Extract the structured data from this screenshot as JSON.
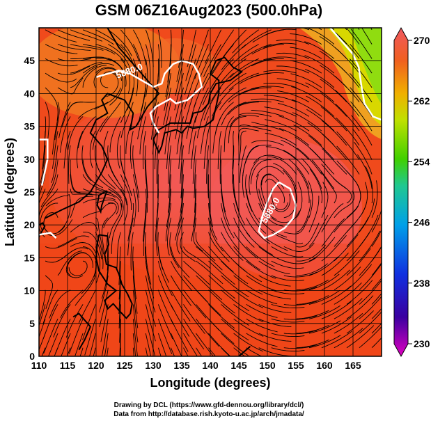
{
  "title": "GSM 06Z16Aug2023 (500.0hPa)",
  "chart_data": {
    "type": "heatmap",
    "x_axis": {
      "label": "Longitude (degrees)",
      "range": [
        110,
        170
      ],
      "ticks": [
        110,
        115,
        120,
        125,
        130,
        135,
        140,
        145,
        150,
        155,
        160,
        165
      ]
    },
    "y_axis": {
      "label": "Latitude  (degrees)",
      "range": [
        0,
        50
      ],
      "ticks": [
        0,
        5,
        10,
        15,
        20,
        25,
        30,
        35,
        40,
        45
      ]
    },
    "colorbar": {
      "range": [
        230,
        270
      ],
      "ticks": [
        230,
        238,
        246,
        254,
        262,
        270
      ],
      "colors": [
        "#e000c0",
        "#3a00a0",
        "#1030e0",
        "#00a0e8",
        "#20c890",
        "#40d000",
        "#c0e000",
        "#f0b000",
        "#f07000",
        "#f03020",
        "#f06070"
      ]
    },
    "contours": [
      {
        "label": "5880.0",
        "lon": 126,
        "lat": 43
      },
      {
        "label": "5880.0",
        "lon": 151,
        "lat": 22
      }
    ],
    "streamlines": true,
    "grid": true
  },
  "credits": [
    "Drawing by DCL (https://www.gfd-dennou.org/library/dcl/)",
    "Data from http://database.rish.kyoto-u.ac.jp/arch/jmadata/"
  ]
}
